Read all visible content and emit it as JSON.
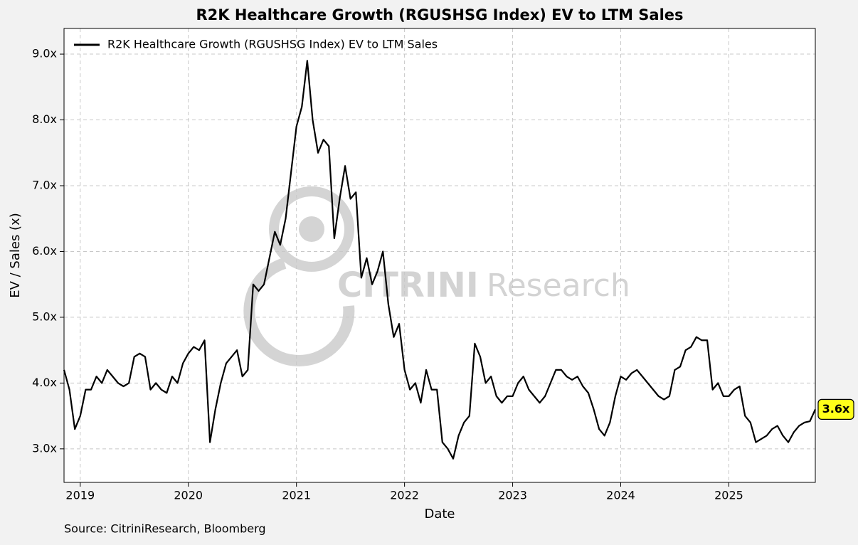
{
  "chart_data": {
    "type": "line",
    "title": "R2K Healthcare Growth (RGUSHSG Index) EV to LTM Sales",
    "x_label": "Date",
    "y_label": "EV / Sales (x)",
    "source": "Source: CitriniResearch, Bloomberg",
    "watermark": [
      "CITRINI",
      "Research"
    ],
    "end_label": "3.6x",
    "x": [
      2018.85,
      2018.9,
      2018.95,
      2019.0,
      2019.05,
      2019.1,
      2019.15,
      2019.2,
      2019.25,
      2019.3,
      2019.35,
      2019.4,
      2019.45,
      2019.5,
      2019.55,
      2019.6,
      2019.65,
      2019.7,
      2019.75,
      2019.8,
      2019.85,
      2019.9,
      2019.95,
      2020.0,
      2020.05,
      2020.1,
      2020.15,
      2020.2,
      2020.25,
      2020.3,
      2020.35,
      2020.4,
      2020.45,
      2020.5,
      2020.55,
      2020.6,
      2020.65,
      2020.7,
      2020.75,
      2020.8,
      2020.85,
      2020.9,
      2020.95,
      2021.0,
      2021.05,
      2021.1,
      2021.15,
      2021.2,
      2021.25,
      2021.3,
      2021.35,
      2021.4,
      2021.45,
      2021.5,
      2021.55,
      2021.6,
      2021.65,
      2021.7,
      2021.75,
      2021.8,
      2021.85,
      2021.9,
      2021.95,
      2022.0,
      2022.05,
      2022.1,
      2022.15,
      2022.2,
      2022.25,
      2022.3,
      2022.35,
      2022.4,
      2022.45,
      2022.5,
      2022.55,
      2022.6,
      2022.65,
      2022.7,
      2022.75,
      2022.8,
      2022.85,
      2022.9,
      2022.95,
      2023.0,
      2023.05,
      2023.1,
      2023.15,
      2023.2,
      2023.25,
      2023.3,
      2023.35,
      2023.4,
      2023.45,
      2023.5,
      2023.55,
      2023.6,
      2023.65,
      2023.7,
      2023.75,
      2023.8,
      2023.85,
      2023.9,
      2023.95,
      2024.0,
      2024.05,
      2024.1,
      2024.15,
      2024.2,
      2024.25,
      2024.3,
      2024.35,
      2024.4,
      2024.45,
      2024.5,
      2024.55,
      2024.6,
      2024.65,
      2024.7,
      2024.75,
      2024.8,
      2024.85,
      2024.9,
      2024.95,
      2025.0,
      2025.05,
      2025.1,
      2025.15,
      2025.2,
      2025.25,
      2025.3,
      2025.35,
      2025.4,
      2025.45,
      2025.5,
      2025.55,
      2025.6,
      2025.65,
      2025.7,
      2025.75,
      2025.8
    ],
    "series": [
      {
        "name": "R2K Healthcare Growth (RGUSHSG Index)  EV to LTM Sales",
        "color": "#000000",
        "values": [
          4.2,
          3.9,
          3.3,
          3.5,
          3.9,
          3.9,
          4.1,
          4.0,
          4.2,
          4.1,
          4.0,
          3.95,
          4.0,
          4.4,
          4.45,
          4.4,
          3.9,
          4.0,
          3.9,
          3.85,
          4.1,
          4.0,
          4.3,
          4.45,
          4.55,
          4.5,
          4.65,
          3.1,
          3.6,
          4.0,
          4.3,
          4.4,
          4.5,
          4.1,
          4.2,
          5.5,
          5.4,
          5.5,
          5.9,
          6.3,
          6.1,
          6.5,
          7.2,
          7.9,
          8.2,
          8.9,
          8.0,
          7.5,
          7.7,
          7.6,
          6.2,
          6.8,
          7.3,
          6.8,
          6.9,
          5.6,
          5.9,
          5.5,
          5.7,
          6.0,
          5.2,
          4.7,
          4.9,
          4.2,
          3.9,
          4.0,
          3.7,
          4.2,
          3.9,
          3.9,
          3.1,
          3.0,
          2.85,
          3.2,
          3.4,
          3.5,
          4.6,
          4.4,
          4.0,
          4.1,
          3.8,
          3.7,
          3.8,
          3.8,
          4.0,
          4.1,
          3.9,
          3.8,
          3.7,
          3.8,
          4.0,
          4.2,
          4.2,
          4.1,
          4.05,
          4.1,
          3.95,
          3.85,
          3.6,
          3.3,
          3.2,
          3.4,
          3.8,
          4.1,
          4.05,
          4.15,
          4.2,
          4.1,
          4.0,
          3.9,
          3.8,
          3.75,
          3.8,
          4.2,
          4.25,
          4.5,
          4.55,
          4.7,
          4.65,
          4.65,
          3.9,
          4.0,
          3.8,
          3.8,
          3.9,
          3.95,
          3.5,
          3.4,
          3.1,
          3.15,
          3.2,
          3.3,
          3.35,
          3.2,
          3.1,
          3.25,
          3.35,
          3.4,
          3.42,
          3.6
        ]
      }
    ],
    "xlim": [
      2018.85,
      2025.8
    ],
    "xticks": [
      2019,
      2020,
      2021,
      2022,
      2023,
      2024,
      2025
    ],
    "ylim": [
      2.49,
      9.39
    ],
    "yticks": [
      {
        "value": 3,
        "label": "3.0x"
      },
      {
        "value": 4,
        "label": "4.0x"
      },
      {
        "value": 5,
        "label": "5.0x"
      },
      {
        "value": 6,
        "label": "6.0x"
      },
      {
        "value": 7,
        "label": "7.0x"
      },
      {
        "value": 8,
        "label": "8.0x"
      },
      {
        "value": 9,
        "label": "9.0x"
      }
    ],
    "grid": true,
    "legend": "upper left"
  }
}
